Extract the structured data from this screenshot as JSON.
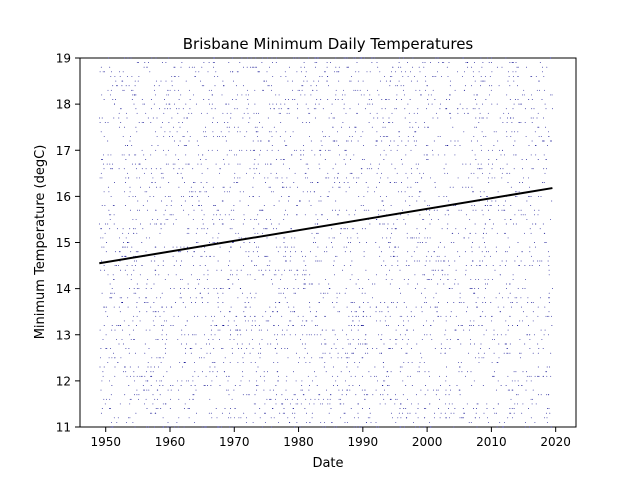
{
  "chart_data": {
    "type": "scatter",
    "title": "Brisbane Minimum Daily Temperatures",
    "xlabel": "Date",
    "ylabel": "Minimum Temperature (degC)",
    "xlim": [
      "1946-01-01",
      "2023-03-01"
    ],
    "ylim": [
      11,
      19
    ],
    "x_ticks": [
      1950,
      1960,
      1970,
      1980,
      1990,
      2000,
      2010,
      2020
    ],
    "y_ticks": [
      11,
      12,
      13,
      14,
      15,
      16,
      17,
      18,
      19
    ],
    "grid": false,
    "legend": "none",
    "series": [
      {
        "kind": "points",
        "marker": "dot",
        "color": "#00008b",
        "x_range": [
          "1949-01-01",
          "2019-06-30"
        ],
        "y_values_quantized_step": 0.1,
        "note_values": "approx daily values, dense in 11–19 band"
      },
      {
        "kind": "trend-line",
        "color": "#000000",
        "points": [
          {
            "x": "1949-01-01",
            "y": 14.55
          },
          {
            "x": "2019-06-30",
            "y": 16.18
          }
        ]
      }
    ]
  }
}
